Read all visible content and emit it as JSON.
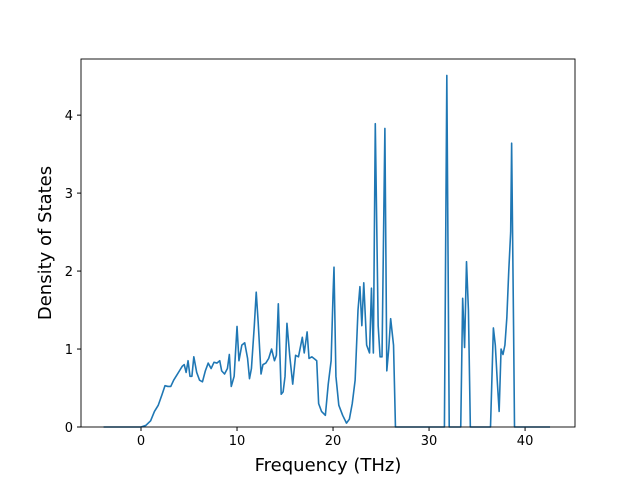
{
  "chart_data": {
    "type": "line",
    "xlabel": "Frequency (THz)",
    "ylabel": "Density of States",
    "xlim": [
      -6.25,
      45.2
    ],
    "ylim": [
      0,
      4.72
    ],
    "xticks": [
      0,
      10,
      20,
      30,
      40
    ],
    "yticks": [
      0,
      1,
      2,
      3,
      4
    ],
    "x": [
      -3.9,
      0,
      0.5,
      1,
      1.4,
      1.8,
      2.2,
      2.5,
      2.8,
      3.1,
      3.4,
      3.7,
      4.0,
      4.3,
      4.5,
      4.7,
      4.9,
      5.1,
      5.3,
      5.5,
      5.8,
      6.1,
      6.4,
      6.7,
      7.0,
      7.3,
      7.6,
      7.9,
      8.2,
      8.4,
      8.7,
      9.0,
      9.2,
      9.4,
      9.7,
      10.0,
      10.2,
      10.5,
      10.8,
      11.1,
      11.3,
      11.5,
      11.8,
      12.0,
      12.2,
      12.5,
      12.7,
      13.0,
      13.3,
      13.6,
      13.9,
      14.1,
      14.3,
      14.6,
      14.8,
      15.0,
      15.2,
      15.5,
      15.8,
      16.1,
      16.4,
      16.8,
      17.0,
      17.3,
      17.5,
      17.8,
      18.1,
      18.3,
      18.5,
      18.8,
      19.2,
      19.5,
      19.8,
      20.0,
      20.1,
      20.3,
      20.6,
      21.0,
      21.4,
      21.7,
      22.0,
      22.3,
      22.6,
      22.8,
      23.0,
      23.2,
      23.5,
      23.8,
      24.0,
      24.2,
      24.4,
      24.7,
      24.9,
      25.1,
      25.4,
      25.6,
      25.8,
      26.0,
      26.3,
      26.5,
      31.6,
      31.85,
      32.1,
      33.3,
      33.5,
      33.7,
      33.9,
      34.1,
      34.3,
      36.4,
      36.7,
      36.9,
      37.1,
      37.3,
      37.5,
      37.7,
      37.9,
      38.1,
      38.3,
      38.5,
      38.6,
      38.8,
      38.9,
      42.6
    ],
    "series": [
      {
        "color": "#1f77b4",
        "values": [
          0,
          0,
          0.02,
          0.08,
          0.2,
          0.28,
          0.42,
          0.53,
          0.52,
          0.52,
          0.6,
          0.66,
          0.72,
          0.78,
          0.8,
          0.7,
          0.85,
          0.65,
          0.65,
          0.9,
          0.7,
          0.6,
          0.58,
          0.72,
          0.82,
          0.75,
          0.83,
          0.82,
          0.85,
          0.72,
          0.68,
          0.75,
          0.93,
          0.52,
          0.65,
          1.29,
          0.85,
          1.05,
          1.08,
          0.88,
          0.62,
          0.75,
          1.3,
          1.73,
          1.35,
          0.68,
          0.8,
          0.82,
          0.88,
          1.0,
          0.85,
          0.92,
          1.58,
          0.42,
          0.45,
          0.65,
          1.33,
          0.9,
          0.55,
          0.92,
          0.9,
          1.15,
          0.95,
          1.22,
          0.88,
          0.9,
          0.87,
          0.85,
          0.3,
          0.2,
          0.15,
          0.55,
          0.85,
          1.7,
          2.05,
          0.65,
          0.28,
          0.15,
          0.05,
          0.1,
          0.3,
          0.6,
          1.5,
          1.8,
          1.3,
          1.85,
          1.05,
          0.95,
          1.78,
          0.95,
          3.89,
          1.3,
          0.9,
          0.9,
          3.83,
          0.72,
          1.0,
          1.39,
          1.05,
          0,
          0,
          4.51,
          0,
          0,
          1.65,
          1.02,
          2.12,
          1.5,
          0,
          0,
          1.27,
          1.05,
          0.6,
          0.2,
          1.0,
          0.93,
          1.05,
          1.4,
          2.0,
          2.5,
          3.64,
          1.3,
          0,
          0
        ]
      }
    ]
  }
}
